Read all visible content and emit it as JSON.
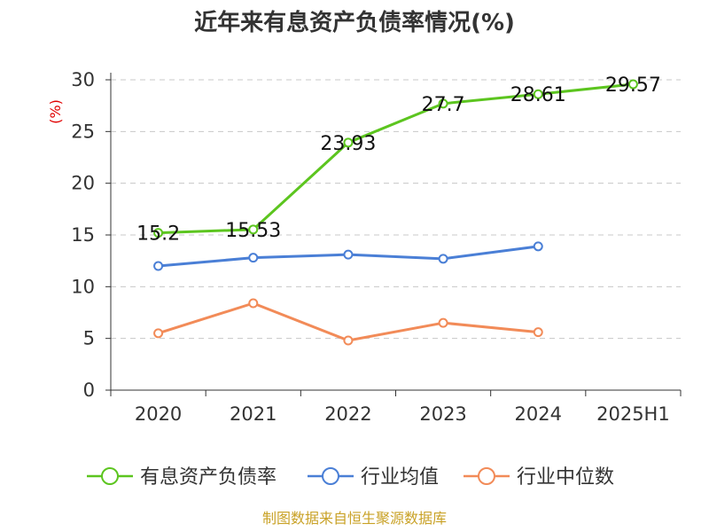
{
  "chart_data": {
    "type": "line",
    "title": "近年来有息资产负债率情况(%)",
    "ylabel": "(%)",
    "xlabel": "",
    "categories": [
      "2020",
      "2021",
      "2022",
      "2023",
      "2024",
      "2025H1"
    ],
    "ylim": [
      0,
      30
    ],
    "yticks": [
      0,
      5,
      10,
      15,
      20,
      25,
      30
    ],
    "grid": true,
    "legend_position": "bottom",
    "series": [
      {
        "name": "有息资产负债率",
        "color": "#5cc51f",
        "values": [
          15.2,
          15.53,
          23.93,
          27.7,
          28.61,
          29.57
        ],
        "labels": [
          "15.2",
          "15.53",
          "23.93",
          "27.7",
          "28.61",
          "29.57"
        ]
      },
      {
        "name": "行业均值",
        "color": "#4a7fd6",
        "values": [
          12.0,
          12.8,
          13.1,
          12.7,
          13.9,
          null
        ]
      },
      {
        "name": "行业中位数",
        "color": "#f28b58",
        "values": [
          5.5,
          8.4,
          4.8,
          6.5,
          5.6,
          null
        ]
      }
    ]
  },
  "source": "制图数据来自恒生聚源数据库"
}
